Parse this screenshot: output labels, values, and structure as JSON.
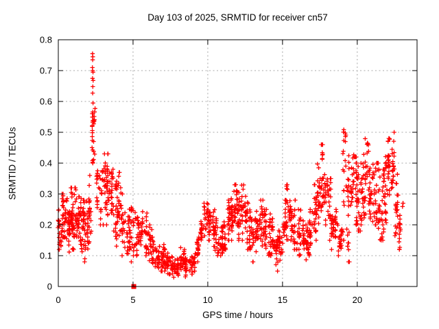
{
  "window": {
    "bg_color": "#ffffff"
  },
  "chart_data": {
    "type": "scatter",
    "title": "Day 103 of 2025, SRMTID for receiver cn57",
    "xlabel": "GPS time / hours",
    "ylabel": "SRMTID / TECUs",
    "xlim": [
      0,
      24
    ],
    "ylim": [
      0,
      0.8
    ],
    "xticks": [
      {
        "v": 0,
        "label": "0"
      },
      {
        "v": 5,
        "label": "5"
      },
      {
        "v": 10,
        "label": "10"
      },
      {
        "v": 15,
        "label": "15"
      },
      {
        "v": 20,
        "label": "20"
      }
    ],
    "yticks": [
      {
        "v": 0,
        "label": "0"
      },
      {
        "v": 0.1,
        "label": "0.1"
      },
      {
        "v": 0.2,
        "label": "0.2"
      },
      {
        "v": 0.3,
        "label": "0.3"
      },
      {
        "v": 0.4,
        "label": "0.4"
      },
      {
        "v": 0.5,
        "label": "0.5"
      },
      {
        "v": 0.6,
        "label": "0.6"
      },
      {
        "v": 0.7,
        "label": "0.7"
      },
      {
        "v": 0.8,
        "label": "0.8"
      }
    ],
    "grid": true,
    "grid_color": "#a8a8a8",
    "border_color": "#000000",
    "legend": "none",
    "series": [
      {
        "name": "srmtid",
        "marker": "plus",
        "color": "#ff0000",
        "seed": 20250413,
        "density_bins": [
          [
            0.0,
            0.25,
            0.12,
            0.26,
            24
          ],
          [
            0.25,
            0.5,
            0.1,
            0.3,
            28
          ],
          [
            0.5,
            0.75,
            0.11,
            0.3,
            28
          ],
          [
            0.75,
            1.0,
            0.12,
            0.32,
            26
          ],
          [
            1.0,
            1.25,
            0.12,
            0.32,
            26
          ],
          [
            1.25,
            1.5,
            0.12,
            0.3,
            26
          ],
          [
            1.5,
            1.75,
            0.08,
            0.28,
            24
          ],
          [
            1.75,
            2.0,
            0.08,
            0.3,
            24
          ],
          [
            2.0,
            2.25,
            0.14,
            0.36,
            22
          ],
          [
            2.25,
            2.45,
            0.47,
            0.58,
            22
          ],
          [
            2.25,
            2.5,
            0.4,
            0.47,
            8
          ],
          [
            2.5,
            2.75,
            0.25,
            0.43,
            14
          ],
          [
            2.75,
            3.0,
            0.2,
            0.4,
            16
          ],
          [
            3.0,
            3.25,
            0.2,
            0.43,
            22
          ],
          [
            3.25,
            3.5,
            0.18,
            0.43,
            22
          ],
          [
            3.5,
            3.75,
            0.18,
            0.38,
            22
          ],
          [
            3.75,
            4.0,
            0.12,
            0.35,
            22
          ],
          [
            4.0,
            4.25,
            0.12,
            0.37,
            22
          ],
          [
            4.25,
            4.5,
            0.1,
            0.3,
            20
          ],
          [
            4.5,
            4.75,
            0.1,
            0.28,
            18
          ],
          [
            4.75,
            5.0,
            0.08,
            0.26,
            18
          ],
          [
            5.0,
            5.25,
            0.1,
            0.26,
            18
          ],
          [
            5.25,
            5.5,
            0.1,
            0.24,
            18
          ],
          [
            5.5,
            5.75,
            0.1,
            0.26,
            18
          ],
          [
            5.75,
            6.0,
            0.1,
            0.26,
            18
          ],
          [
            6.0,
            6.25,
            0.08,
            0.2,
            18
          ],
          [
            6.25,
            6.5,
            0.06,
            0.16,
            18
          ],
          [
            6.5,
            6.75,
            0.06,
            0.14,
            18
          ],
          [
            6.75,
            7.0,
            0.05,
            0.13,
            18
          ],
          [
            7.0,
            7.25,
            0.05,
            0.14,
            18
          ],
          [
            7.25,
            7.5,
            0.04,
            0.12,
            18
          ],
          [
            7.5,
            7.75,
            0.03,
            0.1,
            18
          ],
          [
            7.75,
            8.0,
            0.03,
            0.1,
            18
          ],
          [
            8.0,
            8.25,
            0.05,
            0.13,
            18
          ],
          [
            8.25,
            8.5,
            0.04,
            0.12,
            18
          ],
          [
            8.5,
            8.75,
            0.03,
            0.1,
            18
          ],
          [
            8.75,
            9.0,
            0.04,
            0.1,
            18
          ],
          [
            9.0,
            9.25,
            0.05,
            0.12,
            18
          ],
          [
            9.25,
            9.5,
            0.08,
            0.16,
            18
          ],
          [
            9.5,
            9.75,
            0.12,
            0.22,
            18
          ],
          [
            9.75,
            10.0,
            0.14,
            0.27,
            20
          ],
          [
            10.0,
            10.25,
            0.15,
            0.27,
            20
          ],
          [
            10.25,
            10.5,
            0.13,
            0.25,
            20
          ],
          [
            10.5,
            10.75,
            0.1,
            0.22,
            20
          ],
          [
            10.75,
            11.0,
            0.1,
            0.2,
            20
          ],
          [
            11.0,
            11.25,
            0.12,
            0.25,
            20
          ],
          [
            11.25,
            11.5,
            0.15,
            0.28,
            20
          ],
          [
            11.5,
            11.75,
            0.15,
            0.3,
            22
          ],
          [
            11.75,
            12.0,
            0.18,
            0.33,
            22
          ],
          [
            12.0,
            12.25,
            0.15,
            0.35,
            24
          ],
          [
            12.25,
            12.5,
            0.15,
            0.33,
            22
          ],
          [
            12.5,
            12.75,
            0.12,
            0.28,
            20
          ],
          [
            12.75,
            13.0,
            0.1,
            0.25,
            20
          ],
          [
            13.0,
            13.25,
            0.08,
            0.22,
            20
          ],
          [
            13.25,
            13.5,
            0.1,
            0.25,
            20
          ],
          [
            13.5,
            13.75,
            0.12,
            0.28,
            20
          ],
          [
            13.75,
            14.0,
            0.1,
            0.25,
            20
          ],
          [
            14.0,
            14.25,
            0.1,
            0.25,
            20
          ],
          [
            14.25,
            14.5,
            0.08,
            0.22,
            20
          ],
          [
            14.5,
            14.75,
            0.05,
            0.2,
            20
          ],
          [
            14.75,
            15.0,
            0.08,
            0.22,
            20
          ],
          [
            15.0,
            15.25,
            0.12,
            0.28,
            20
          ],
          [
            15.25,
            15.5,
            0.15,
            0.33,
            22
          ],
          [
            15.5,
            15.75,
            0.15,
            0.3,
            20
          ],
          [
            15.75,
            16.0,
            0.12,
            0.28,
            20
          ],
          [
            16.0,
            16.25,
            0.1,
            0.25,
            20
          ],
          [
            16.25,
            16.5,
            0.1,
            0.22,
            20
          ],
          [
            16.5,
            16.75,
            0.08,
            0.2,
            20
          ],
          [
            16.75,
            17.0,
            0.1,
            0.25,
            20
          ],
          [
            17.0,
            17.25,
            0.15,
            0.33,
            20
          ],
          [
            17.25,
            17.5,
            0.2,
            0.42,
            22
          ],
          [
            17.5,
            17.75,
            0.22,
            0.46,
            24
          ],
          [
            17.75,
            18.0,
            0.2,
            0.4,
            20
          ],
          [
            18.0,
            18.25,
            0.15,
            0.35,
            20
          ],
          [
            18.25,
            18.5,
            0.12,
            0.3,
            20
          ],
          [
            18.5,
            18.75,
            0.1,
            0.25,
            18
          ],
          [
            18.75,
            19.0,
            0.07,
            0.2,
            18
          ],
          [
            19.0,
            19.25,
            0.15,
            0.51,
            22
          ],
          [
            19.25,
            19.5,
            0.08,
            0.46,
            22
          ],
          [
            19.5,
            19.75,
            0.2,
            0.44,
            20
          ],
          [
            19.75,
            20.0,
            0.2,
            0.42,
            20
          ],
          [
            20.0,
            20.25,
            0.18,
            0.4,
            22
          ],
          [
            20.25,
            20.5,
            0.2,
            0.45,
            22
          ],
          [
            20.5,
            20.75,
            0.22,
            0.48,
            22
          ],
          [
            20.75,
            21.0,
            0.22,
            0.44,
            22
          ],
          [
            21.0,
            21.25,
            0.2,
            0.42,
            22
          ],
          [
            21.25,
            21.5,
            0.18,
            0.4,
            22
          ],
          [
            21.5,
            21.75,
            0.15,
            0.38,
            22
          ],
          [
            21.75,
            22.0,
            0.2,
            0.45,
            22
          ],
          [
            22.0,
            22.25,
            0.25,
            0.48,
            24
          ],
          [
            22.25,
            22.5,
            0.28,
            0.51,
            24
          ],
          [
            22.5,
            22.75,
            0.16,
            0.38,
            22
          ],
          [
            22.75,
            23.05,
            0.12,
            0.27,
            18
          ]
        ],
        "peak_points": [
          [
            2.29,
            0.755
          ],
          [
            2.31,
            0.745
          ],
          [
            2.3,
            0.735
          ],
          [
            2.28,
            0.71
          ],
          [
            2.3,
            0.7
          ],
          [
            2.32,
            0.695
          ],
          [
            2.29,
            0.675
          ],
          [
            2.33,
            0.668
          ],
          [
            2.31,
            0.648
          ],
          [
            2.3,
            0.627
          ],
          [
            2.32,
            0.595
          ]
        ]
      },
      {
        "name": "event-marker",
        "marker": "filled-square",
        "color": "#ff0000",
        "points": [
          [
            5.05,
            0.0
          ]
        ]
      }
    ]
  }
}
